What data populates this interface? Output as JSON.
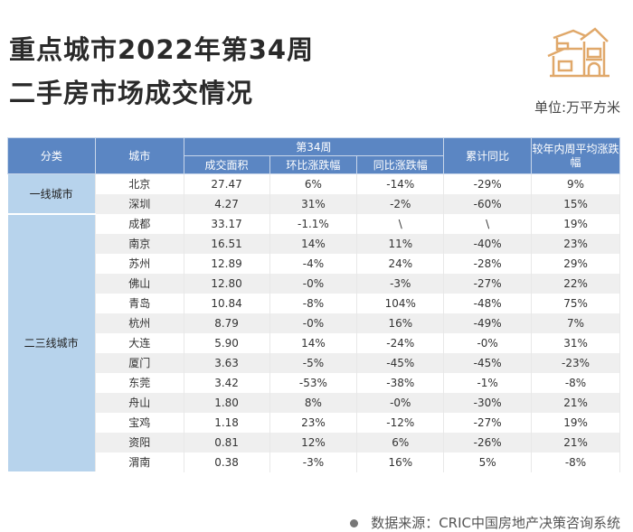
{
  "title": {
    "line1": "重点城市2022年第34周",
    "line2": "二手房市场成交情况"
  },
  "unit": "单位:万平方米",
  "icon": "house-icon",
  "colors": {
    "header": "#5b86c3",
    "category": "#b7d3ec",
    "accent": "#e0a86a"
  },
  "headers": {
    "category": "分类",
    "city": "城市",
    "week": "第34周",
    "area": "成交面积",
    "mom": "环比涨跌幅",
    "yoy": "同比涨跌幅",
    "cum": "累计同比",
    "avg": "较年内周平均涨跌幅"
  },
  "groups": [
    {
      "name": "一线城市",
      "rows": [
        [
          "北京",
          "27.47",
          "6%",
          "-14%",
          "-29%",
          "9%"
        ],
        [
          "深圳",
          "4.27",
          "31%",
          "-2%",
          "-60%",
          "15%"
        ]
      ]
    },
    {
      "name": "二三线城市",
      "rows": [
        [
          "成都",
          "33.17",
          "-1.1%",
          "\\",
          "\\",
          "19%"
        ],
        [
          "南京",
          "16.51",
          "14%",
          "11%",
          "-40%",
          "23%"
        ],
        [
          "苏州",
          "12.89",
          "-4%",
          "24%",
          "-28%",
          "29%"
        ],
        [
          "佛山",
          "12.80",
          "-0%",
          "-3%",
          "-27%",
          "22%"
        ],
        [
          "青岛",
          "10.84",
          "-8%",
          "104%",
          "-48%",
          "75%"
        ],
        [
          "杭州",
          "8.79",
          "-0%",
          "16%",
          "-49%",
          "7%"
        ],
        [
          "大连",
          "5.90",
          "14%",
          "-24%",
          "-0%",
          "31%"
        ],
        [
          "厦门",
          "3.63",
          "-5%",
          "-45%",
          "-45%",
          "-23%"
        ],
        [
          "东莞",
          "3.42",
          "-53%",
          "-38%",
          "-1%",
          "-8%"
        ],
        [
          "舟山",
          "1.80",
          "8%",
          "-0%",
          "-30%",
          "21%"
        ],
        [
          "宝鸡",
          "1.18",
          "23%",
          "-12%",
          "-27%",
          "19%"
        ],
        [
          "资阳",
          "0.81",
          "12%",
          "6%",
          "-26%",
          "21%"
        ],
        [
          "渭南",
          "0.38",
          "-3%",
          "16%",
          "5%",
          "-8%"
        ]
      ]
    }
  ],
  "footer": "数据来源：CRIC中国房地产决策咨询系统"
}
